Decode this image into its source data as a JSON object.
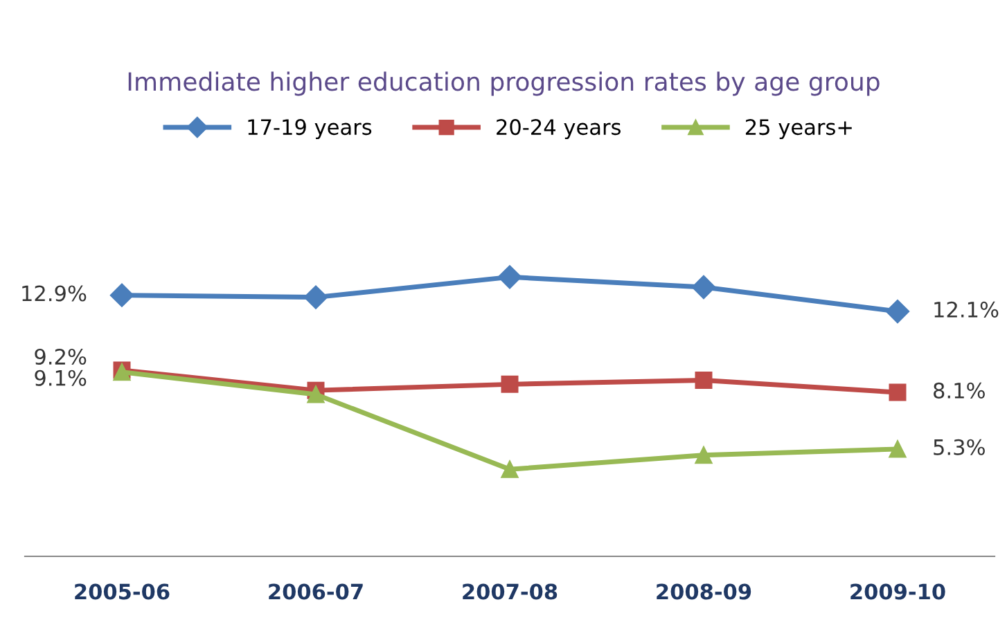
{
  "chart_data": {
    "type": "line",
    "title": "Immediate higher education progression rates by age group",
    "categories": [
      "2005-06",
      "2006-07",
      "2007-08",
      "2008-09",
      "2009-10"
    ],
    "series": [
      {
        "name": "17-19 years",
        "color": "#4a7ebb",
        "marker": "diamond",
        "values": [
          12.9,
          12.8,
          13.8,
          13.3,
          12.1
        ],
        "value_labels": [
          "12.9%",
          null,
          null,
          null,
          "12.1%"
        ]
      },
      {
        "name": "20-24 years",
        "color": "#be4b48",
        "marker": "square",
        "values": [
          9.2,
          8.2,
          8.5,
          8.7,
          8.1
        ],
        "value_labels": [
          "9.2%",
          null,
          null,
          null,
          "8.1%"
        ]
      },
      {
        "name": "25 years+",
        "color": "#98b954",
        "marker": "triangle",
        "values": [
          9.1,
          8.0,
          4.3,
          5.0,
          5.3
        ],
        "value_labels": [
          "9.1%",
          null,
          null,
          null,
          "5.3%"
        ]
      }
    ],
    "legend": "top",
    "grid": false
  }
}
